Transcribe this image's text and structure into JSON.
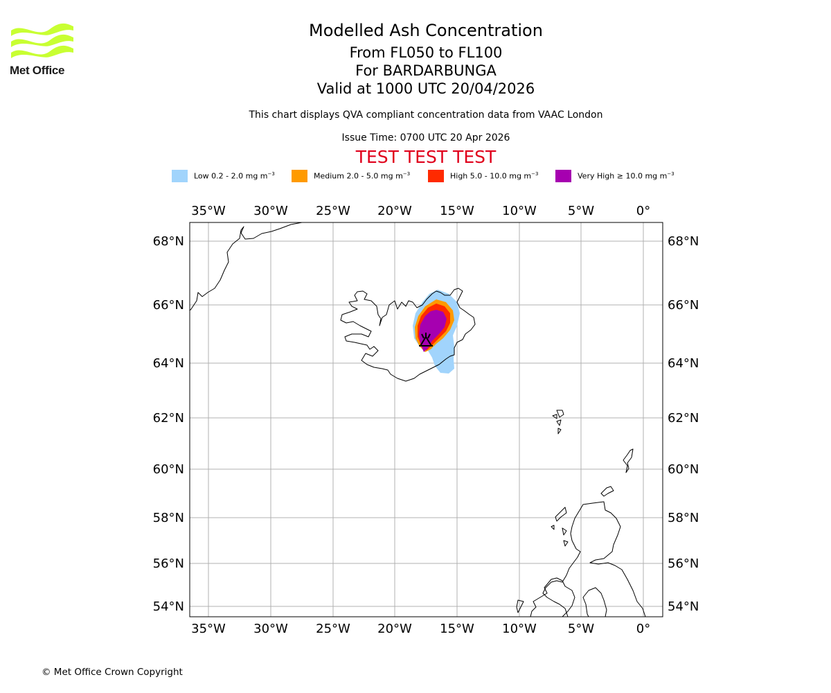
{
  "header": {
    "title": "Modelled Ash Concentration",
    "levels": "From FL050 to FL100",
    "volcano": "For BARDARBUNGA",
    "valid": "Valid at 1000 UTC 20/04/2026",
    "subtitle": "This chart displays QVA compliant concentration data from VAAC London",
    "issue_time": "Issue Time: 0700 UTC 20 Apr 2026",
    "test_banner": "TEST TEST TEST"
  },
  "logo": {
    "text": "Met Office",
    "color": "#c8ff32"
  },
  "legend": [
    {
      "label": "Low 0.2 - 2.0 mg m",
      "unit_exp": "−3",
      "color": "#a1d4fc"
    },
    {
      "label": "Medium 2.0 - 5.0 mg m",
      "unit_exp": "−3",
      "color": "#ff9a00"
    },
    {
      "label": "High 5.0 - 10.0 mg m",
      "unit_exp": "−3",
      "color": "#ff2a00"
    },
    {
      "label": "Very High ≥ 10.0 mg m",
      "unit_exp": "−3",
      "color": "#a600b0"
    }
  ],
  "map": {
    "lon_labels": [
      "35°W",
      "30°W",
      "25°W",
      "20°W",
      "15°W",
      "10°W",
      "5°W",
      "0°"
    ],
    "lat_labels": [
      "68°N",
      "66°N",
      "64°N",
      "62°N",
      "60°N",
      "58°N",
      "56°N",
      "54°N"
    ],
    "volcano_marker": "volcano-icon"
  },
  "footer": {
    "copyright": "© Met Office Crown Copyright"
  }
}
